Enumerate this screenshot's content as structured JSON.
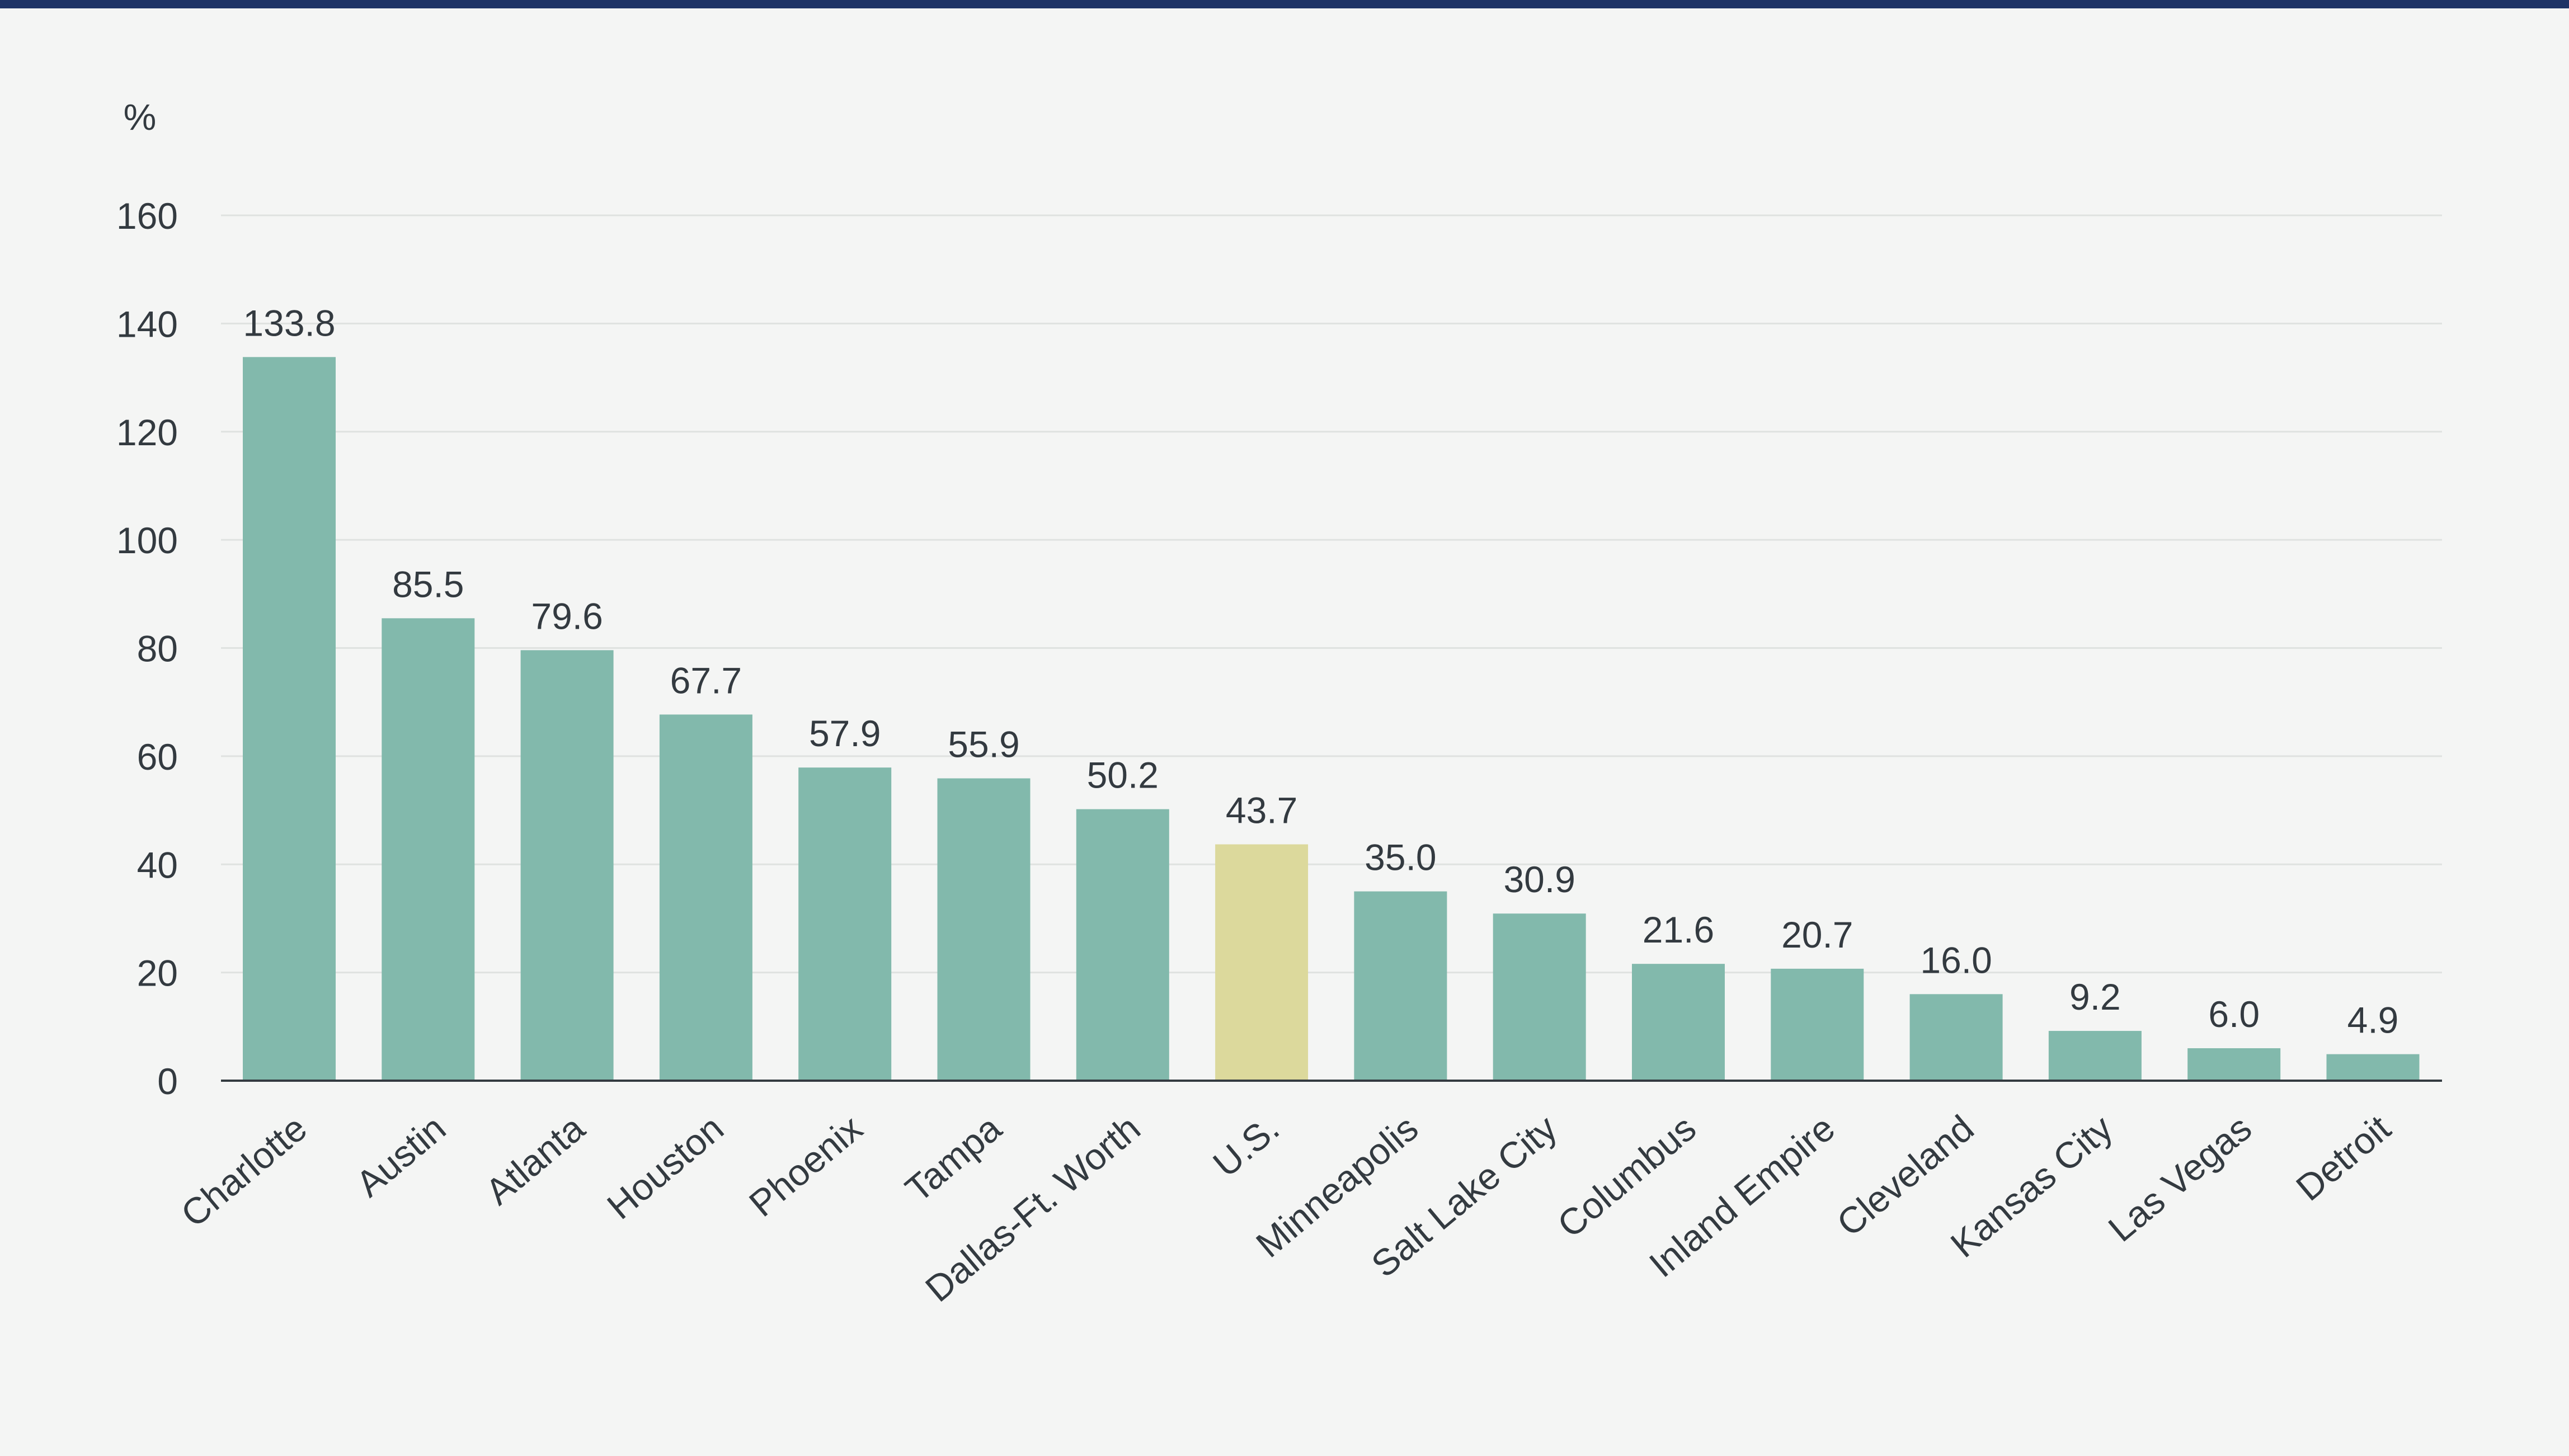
{
  "chart_data": {
    "type": "bar",
    "title": "",
    "xlabel": "",
    "ylabel": "%",
    "ylim": [
      0,
      160
    ],
    "yticks": [
      0,
      20,
      40,
      60,
      80,
      100,
      120,
      140,
      160
    ],
    "grid": true,
    "categories": [
      "Charlotte",
      "Austin",
      "Atlanta",
      "Houston",
      "Phoenix",
      "Tampa",
      "Dallas-Ft. Worth",
      "U.S.",
      "Minneapolis",
      "Salt Lake City",
      "Columbus",
      "Inland Empire",
      "Cleveland",
      "Kansas City",
      "Las Vegas",
      "Detroit"
    ],
    "values": [
      133.8,
      85.5,
      79.6,
      67.7,
      57.9,
      55.9,
      50.2,
      43.7,
      35.0,
      30.9,
      21.6,
      20.7,
      16.0,
      9.2,
      6.0,
      4.9
    ],
    "value_labels": [
      "133.8",
      "85.5",
      "79.6",
      "67.7",
      "57.9",
      "55.9",
      "50.2",
      "43.7",
      "35.0",
      "30.9",
      "21.6",
      "20.7",
      "16.0",
      "9.2",
      "6.0",
      "4.9"
    ],
    "highlight_category": "U.S.",
    "colors": {
      "bar": "#82b9ac",
      "highlight": "#dcd99c",
      "grid": "#dfe2e0",
      "axis": "#333a40",
      "top_rule": "#1f3466",
      "background": "#f4f5f4"
    }
  }
}
